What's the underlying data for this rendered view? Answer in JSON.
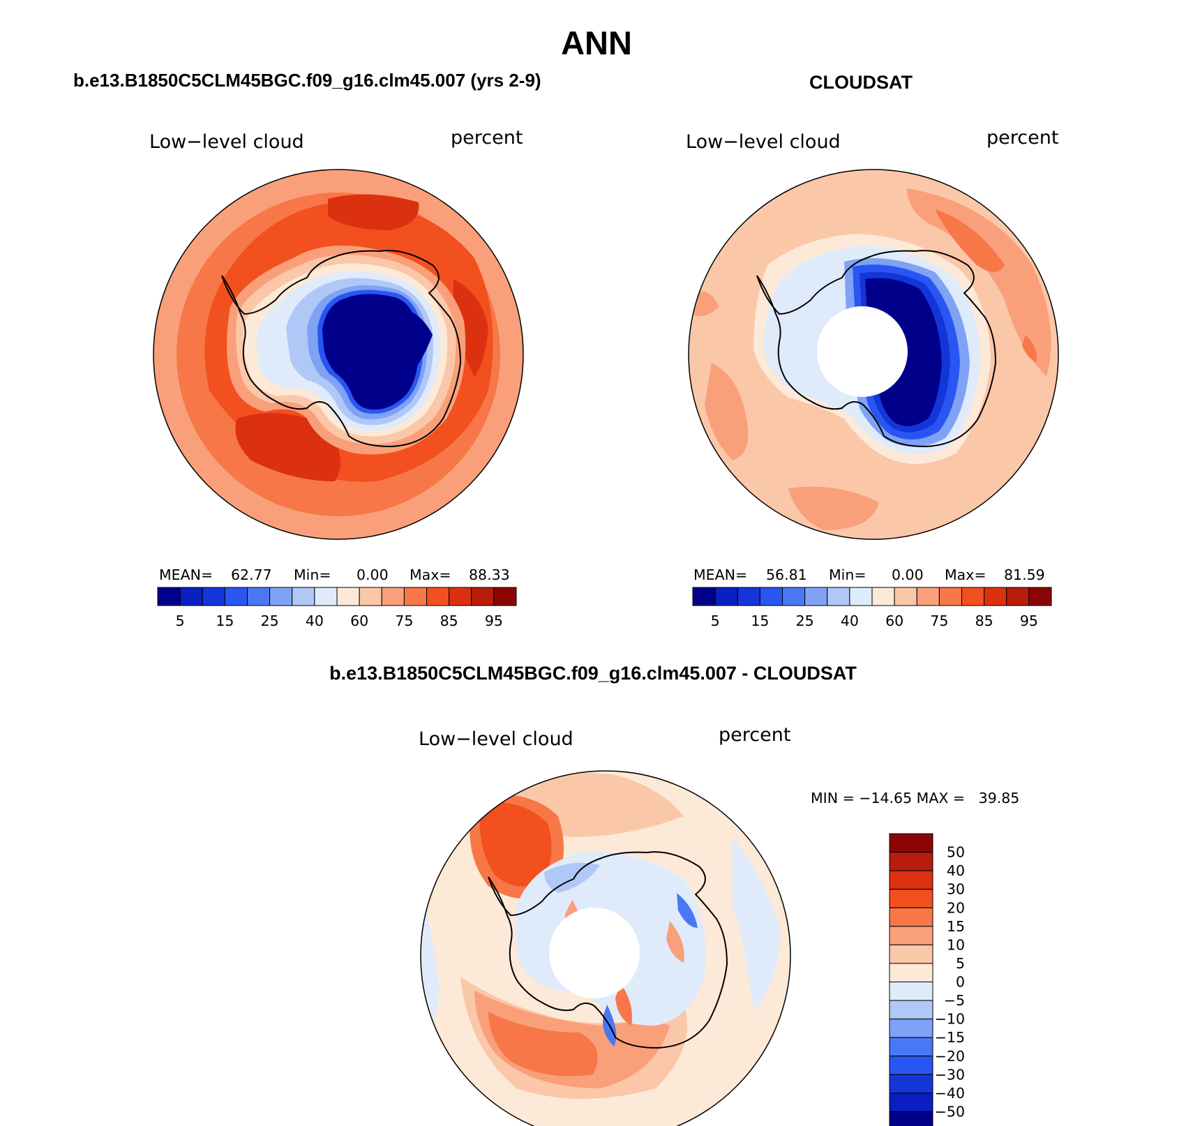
{
  "title": "ANN",
  "panels": [
    {
      "id": "model",
      "title": "b.e13.B1850C5CLM45BGC.f09_g16.clm45.007 (yrs 2-9)",
      "variable": "Low−level cloud",
      "units": "percent",
      "stats": {
        "mean_label": "MEAN=",
        "mean": "62.77",
        "min_label": "Min=",
        "min": "0.00",
        "max_label": "Max=",
        "max": "88.33"
      }
    },
    {
      "id": "obs",
      "title": "CLOUDSAT",
      "variable": "Low−level cloud",
      "units": "percent",
      "stats": {
        "mean_label": "MEAN=",
        "mean": "56.81",
        "min_label": "Min=",
        "min": "0.00",
        "max_label": "Max=",
        "max": "81.59"
      }
    }
  ],
  "diff_panel": {
    "title": "b.e13.B1850C5CLM45BGC.f09_g16.clm45.007 - CLOUDSAT",
    "variable": "Low−level cloud",
    "units": "percent",
    "stats_text": "MIN = −14.65 MAX =   39.85"
  },
  "colorbar_main": {
    "labels": [
      "5",
      "15",
      "25",
      "40",
      "60",
      "75",
      "85",
      "95"
    ],
    "colors": [
      "#00008b",
      "#0a1fbf",
      "#1436d8",
      "#2956f2",
      "#4a78f5",
      "#7fa2f5",
      "#b0c8f7",
      "#dfebfb",
      "#fde9d7",
      "#fbc7a9",
      "#f9a07b",
      "#f77748",
      "#f2501e",
      "#dc3110",
      "#b61d0a",
      "#8c0505"
    ]
  },
  "colorbar_diff": {
    "labels": [
      "50",
      "40",
      "30",
      "20",
      "15",
      "10",
      "5",
      "0",
      "−5",
      "−10",
      "−15",
      "−20",
      "−30",
      "−40",
      "−50"
    ],
    "colors": [
      "#8c0505",
      "#b61d0a",
      "#dc3110",
      "#f2501e",
      "#f77748",
      "#f9a07b",
      "#fbc7a9",
      "#fde9d7",
      "#dfebfb",
      "#b0c8f7",
      "#7fa2f5",
      "#4a78f5",
      "#2956f2",
      "#1436d8",
      "#0a1fbf",
      "#00008b"
    ]
  },
  "chart_data": {
    "type": "heatmap",
    "projection": "south polar stereographic",
    "season": "ANN",
    "field": "Low-level cloud (percent)",
    "panels": [
      {
        "name": "model",
        "mean": 62.77,
        "min": 0.0,
        "max": 88.33,
        "contour_levels": [
          5,
          10,
          15,
          20,
          25,
          30,
          40,
          50,
          60,
          70,
          75,
          80,
          85,
          90,
          95
        ]
      },
      {
        "name": "CLOUDSAT",
        "mean": 56.81,
        "min": 0.0,
        "max": 81.59,
        "contour_levels": [
          5,
          10,
          15,
          20,
          25,
          30,
          40,
          50,
          60,
          70,
          75,
          80,
          85,
          90,
          95
        ]
      },
      {
        "name": "model - CLOUDSAT",
        "min": -14.65,
        "max": 39.85,
        "contour_levels": [
          -50,
          -40,
          -30,
          -20,
          -15,
          -10,
          -5,
          0,
          5,
          10,
          15,
          20,
          30,
          40,
          50
        ]
      }
    ]
  }
}
